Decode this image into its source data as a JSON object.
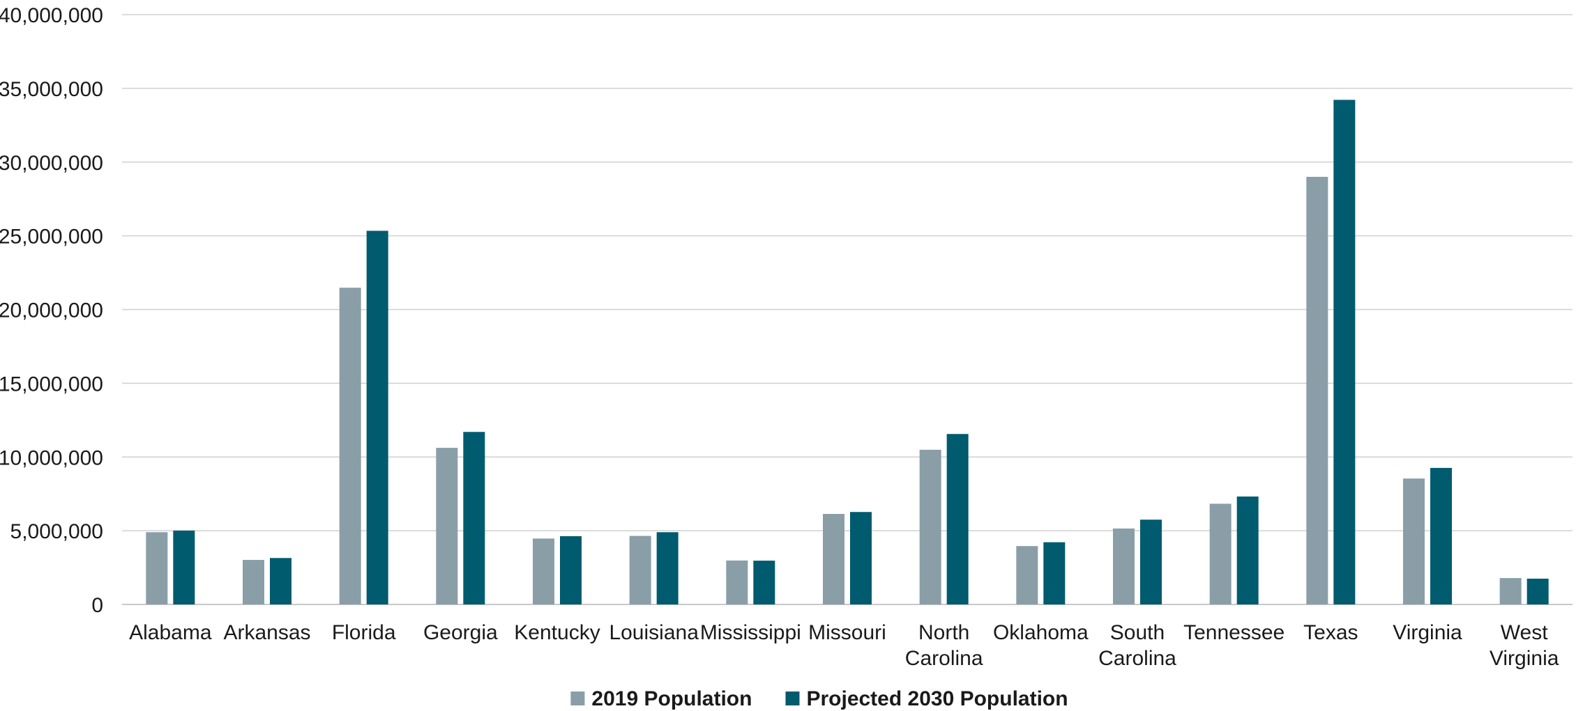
{
  "chart_data": {
    "type": "bar",
    "title": "",
    "xlabel": "",
    "ylabel": "",
    "ylim": [
      0,
      40000000
    ],
    "y_ticks": [
      0,
      5000000,
      10000000,
      15000000,
      20000000,
      25000000,
      30000000,
      35000000,
      40000000
    ],
    "y_tick_labels": [
      "0",
      "5,000,000",
      "10,000,000",
      "15,000,000",
      "20,000,000",
      "25,000,000",
      "30,000,000",
      "35,000,000",
      "40,000,000"
    ],
    "grid": true,
    "legend_position": "bottom-center",
    "categories": [
      "Alabama",
      "Arkansas",
      "Florida",
      "Georgia",
      "Kentucky",
      "Louisiana",
      "Mississippi",
      "Missouri",
      "North Carolina",
      "Oklahoma",
      "South Carolina",
      "Tennessee",
      "Texas",
      "Virginia",
      "West Virginia"
    ],
    "series": [
      {
        "name": "2019 Population",
        "color": "#8a9ea8",
        "values": [
          4900000,
          3020000,
          21480000,
          10620000,
          4470000,
          4650000,
          2980000,
          6140000,
          10490000,
          3960000,
          5150000,
          6830000,
          29000000,
          8540000,
          1790000
        ]
      },
      {
        "name": "Projected 2030 Population",
        "color": "#005b6e",
        "values": [
          5010000,
          3150000,
          25340000,
          11700000,
          4630000,
          4900000,
          2970000,
          6270000,
          11560000,
          4220000,
          5750000,
          7320000,
          34220000,
          9260000,
          1750000
        ]
      }
    ]
  }
}
